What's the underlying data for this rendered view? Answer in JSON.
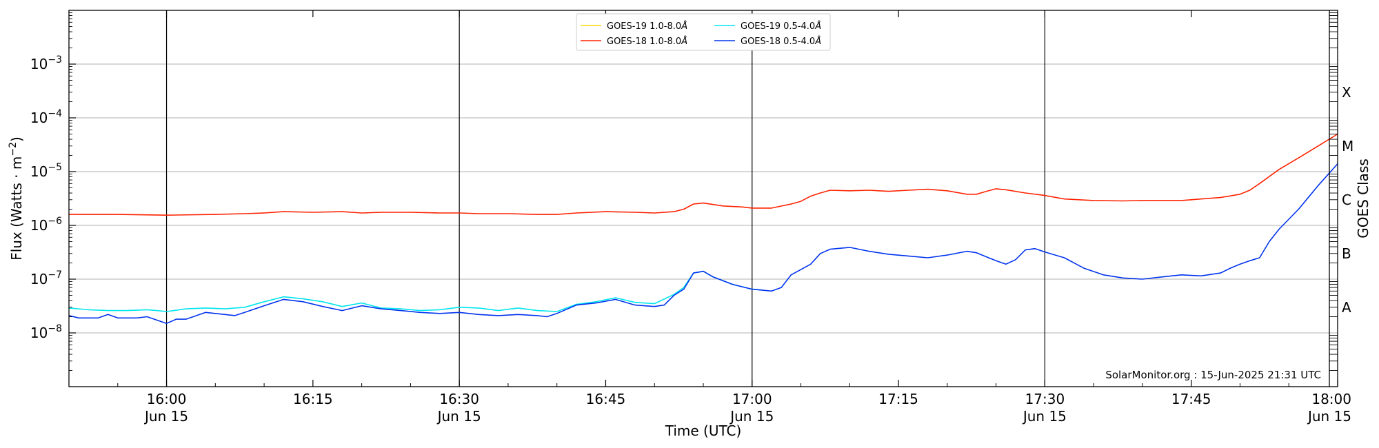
{
  "chart_data": {
    "type": "line",
    "title": "",
    "xlabel": "Time (UTC)",
    "ylabel": "Flux (Watts · m",
    "ylabel_sup": "−2",
    "ylabel_close": ")",
    "yscale": "log",
    "xlim": [
      -10,
      120
    ],
    "ylim": [
      1e-09,
      0.01
    ],
    "x_unit": "minutes after 16:00 UTC",
    "grid": "horizontal at decades",
    "legend_position": "top-center",
    "x_ticks": [
      {
        "x": 0,
        "label1": "16:00",
        "label2": "Jun 15"
      },
      {
        "x": 15,
        "label1": "16:15",
        "label2": ""
      },
      {
        "x": 30,
        "label1": "16:30",
        "label2": "Jun 15"
      },
      {
        "x": 45,
        "label1": "16:45",
        "label2": ""
      },
      {
        "x": 60,
        "label1": "17:00",
        "label2": "Jun 15"
      },
      {
        "x": 75,
        "label1": "17:15",
        "label2": ""
      },
      {
        "x": 90,
        "label1": "17:30",
        "label2": "Jun 15"
      },
      {
        "x": 105,
        "label1": "17:45",
        "label2": ""
      },
      {
        "x": 120,
        "label1": "18:00",
        "label2": "Jun 15"
      }
    ],
    "y_ticks": [
      {
        "value": 1e-08,
        "base": "10",
        "exp": "−8"
      },
      {
        "value": 1e-07,
        "base": "10",
        "exp": "−7"
      },
      {
        "value": 1e-06,
        "base": "10",
        "exp": "−6"
      },
      {
        "value": 1e-05,
        "base": "10",
        "exp": "−5"
      },
      {
        "value": 0.0001,
        "base": "10",
        "exp": "−4"
      },
      {
        "value": 0.001,
        "base": "10",
        "exp": "−3"
      }
    ],
    "vlines": [
      0,
      30,
      60,
      90
    ],
    "right_axis": {
      "label": "GOES Class",
      "classes": [
        {
          "label": "A",
          "value": 3e-08
        },
        {
          "label": "B",
          "value": 3e-07
        },
        {
          "label": "C",
          "value": 3e-06
        },
        {
          "label": "M",
          "value": 3e-05
        },
        {
          "label": "X",
          "value": 0.0003
        }
      ]
    },
    "annotation": "SolarMonitor.org : 15-Jun-2025 21:31 UTC",
    "series": [
      {
        "name": "GOES-19 1.0-8.0",
        "color": "#ffd700",
        "points": []
      },
      {
        "name": "GOES-19 0.5-4.0",
        "color": "#00e5ee",
        "points": [
          [
            -10,
            2.9e-08
          ],
          [
            -8,
            2.7e-08
          ],
          [
            -6,
            2.6e-08
          ],
          [
            -4,
            2.6e-08
          ],
          [
            -2,
            2.7e-08
          ],
          [
            -1,
            2.6e-08
          ],
          [
            0,
            2.5e-08
          ],
          [
            2,
            2.8e-08
          ],
          [
            4,
            2.9e-08
          ],
          [
            6,
            2.8e-08
          ],
          [
            8,
            3e-08
          ],
          [
            10,
            3.8e-08
          ],
          [
            12,
            4.7e-08
          ],
          [
            14,
            4.3e-08
          ],
          [
            16,
            3.8e-08
          ],
          [
            18,
            3.1e-08
          ],
          [
            20,
            3.6e-08
          ],
          [
            22,
            2.9e-08
          ],
          [
            24,
            2.8e-08
          ],
          [
            26,
            2.6e-08
          ],
          [
            28,
            2.7e-08
          ],
          [
            30,
            3e-08
          ],
          [
            32,
            2.9e-08
          ],
          [
            34,
            2.6e-08
          ],
          [
            36,
            2.9e-08
          ],
          [
            38,
            2.6e-08
          ],
          [
            40,
            2.5e-08
          ],
          [
            42,
            3.4e-08
          ],
          [
            44,
            3.8e-08
          ],
          [
            46,
            4.5e-08
          ],
          [
            48,
            3.7e-08
          ],
          [
            50,
            3.5e-08
          ],
          [
            52,
            5.2e-08
          ],
          [
            53,
            7e-08
          ],
          [
            54,
            1.3e-07
          ],
          [
            55,
            1.4e-07
          ],
          [
            56,
            1.1e-07
          ],
          [
            58,
            8e-08
          ],
          [
            60,
            6.5e-08
          ],
          [
            61,
            6.3e-08
          ]
        ]
      },
      {
        "name": "GOES-18 1.0-8.0",
        "color": "#ff2200",
        "points": [
          [
            -10,
            1.6e-06
          ],
          [
            -5,
            1.6e-06
          ],
          [
            0,
            1.55e-06
          ],
          [
            5,
            1.6e-06
          ],
          [
            8,
            1.65e-06
          ],
          [
            10,
            1.7e-06
          ],
          [
            12,
            1.8e-06
          ],
          [
            15,
            1.75e-06
          ],
          [
            18,
            1.8e-06
          ],
          [
            20,
            1.7e-06
          ],
          [
            22,
            1.75e-06
          ],
          [
            25,
            1.75e-06
          ],
          [
            28,
            1.7e-06
          ],
          [
            30,
            1.7e-06
          ],
          [
            32,
            1.65e-06
          ],
          [
            35,
            1.65e-06
          ],
          [
            38,
            1.6e-06
          ],
          [
            40,
            1.6e-06
          ],
          [
            42,
            1.7e-06
          ],
          [
            45,
            1.8e-06
          ],
          [
            48,
            1.75e-06
          ],
          [
            50,
            1.7e-06
          ],
          [
            52,
            1.8e-06
          ],
          [
            53,
            2e-06
          ],
          [
            54,
            2.5e-06
          ],
          [
            55,
            2.6e-06
          ],
          [
            57,
            2.3e-06
          ],
          [
            59,
            2.2e-06
          ],
          [
            60,
            2.1e-06
          ],
          [
            62,
            2.1e-06
          ],
          [
            64,
            2.5e-06
          ],
          [
            65,
            2.8e-06
          ],
          [
            66,
            3.5e-06
          ],
          [
            67,
            4e-06
          ],
          [
            68,
            4.5e-06
          ],
          [
            70,
            4.4e-06
          ],
          [
            72,
            4.5e-06
          ],
          [
            74,
            4.3e-06
          ],
          [
            76,
            4.5e-06
          ],
          [
            78,
            4.7e-06
          ],
          [
            80,
            4.4e-06
          ],
          [
            82,
            3.8e-06
          ],
          [
            83,
            3.8e-06
          ],
          [
            84,
            4.3e-06
          ],
          [
            85,
            4.8e-06
          ],
          [
            86,
            4.6e-06
          ],
          [
            88,
            4e-06
          ],
          [
            90,
            3.6e-06
          ],
          [
            92,
            3.1e-06
          ],
          [
            95,
            2.9e-06
          ],
          [
            98,
            2.85e-06
          ],
          [
            100,
            2.9e-06
          ],
          [
            102,
            2.9e-06
          ],
          [
            104,
            2.9e-06
          ],
          [
            106,
            3.1e-06
          ],
          [
            108,
            3.3e-06
          ],
          [
            110,
            3.8e-06
          ],
          [
            111,
            4.5e-06
          ],
          [
            112,
            6e-06
          ],
          [
            114,
            1.1e-05
          ],
          [
            116,
            1.8e-05
          ],
          [
            118,
            3e-05
          ],
          [
            120,
            5e-05
          ]
        ]
      },
      {
        "name": "GOES-18 0.5-4.0",
        "color": "#0033ee",
        "points": [
          [
            -10,
            2.1e-08
          ],
          [
            -9,
            1.9e-08
          ],
          [
            -7,
            1.9e-08
          ],
          [
            -6,
            2.2e-08
          ],
          [
            -5,
            1.9e-08
          ],
          [
            -3,
            1.9e-08
          ],
          [
            -2,
            2e-08
          ],
          [
            0,
            1.5e-08
          ],
          [
            1,
            1.8e-08
          ],
          [
            2,
            1.8e-08
          ],
          [
            4,
            2.4e-08
          ],
          [
            6,
            2.2e-08
          ],
          [
            7,
            2.1e-08
          ],
          [
            8,
            2.4e-08
          ],
          [
            10,
            3.2e-08
          ],
          [
            12,
            4.2e-08
          ],
          [
            14,
            3.8e-08
          ],
          [
            16,
            3.1e-08
          ],
          [
            18,
            2.6e-08
          ],
          [
            20,
            3.2e-08
          ],
          [
            22,
            2.8e-08
          ],
          [
            24,
            2.6e-08
          ],
          [
            26,
            2.4e-08
          ],
          [
            28,
            2.3e-08
          ],
          [
            30,
            2.4e-08
          ],
          [
            32,
            2.2e-08
          ],
          [
            34,
            2.1e-08
          ],
          [
            36,
            2.2e-08
          ],
          [
            38,
            2.1e-08
          ],
          [
            39,
            2e-08
          ],
          [
            40,
            2.3e-08
          ],
          [
            42,
            3.3e-08
          ],
          [
            44,
            3.6e-08
          ],
          [
            46,
            4.2e-08
          ],
          [
            48,
            3.3e-08
          ],
          [
            50,
            3.1e-08
          ],
          [
            51,
            3.3e-08
          ],
          [
            52,
            5e-08
          ],
          [
            53,
            6.5e-08
          ],
          [
            54,
            1.3e-07
          ],
          [
            55,
            1.4e-07
          ],
          [
            56,
            1.1e-07
          ],
          [
            58,
            8e-08
          ],
          [
            60,
            6.5e-08
          ],
          [
            62,
            6e-08
          ],
          [
            63,
            7e-08
          ],
          [
            64,
            1.2e-07
          ],
          [
            66,
            1.9e-07
          ],
          [
            67,
            3e-07
          ],
          [
            68,
            3.6e-07
          ],
          [
            70,
            3.9e-07
          ],
          [
            72,
            3.3e-07
          ],
          [
            74,
            2.9e-07
          ],
          [
            76,
            2.7e-07
          ],
          [
            78,
            2.5e-07
          ],
          [
            80,
            2.8e-07
          ],
          [
            82,
            3.3e-07
          ],
          [
            83,
            3.1e-07
          ],
          [
            84,
            2.6e-07
          ],
          [
            85,
            2.2e-07
          ],
          [
            86,
            1.9e-07
          ],
          [
            87,
            2.3e-07
          ],
          [
            88,
            3.5e-07
          ],
          [
            89,
            3.7e-07
          ],
          [
            90,
            3.2e-07
          ],
          [
            92,
            2.5e-07
          ],
          [
            94,
            1.6e-07
          ],
          [
            96,
            1.2e-07
          ],
          [
            98,
            1.05e-07
          ],
          [
            100,
            1e-07
          ],
          [
            102,
            1.1e-07
          ],
          [
            104,
            1.2e-07
          ],
          [
            106,
            1.15e-07
          ],
          [
            108,
            1.3e-07
          ],
          [
            109,
            1.6e-07
          ],
          [
            110,
            1.9e-07
          ],
          [
            111,
            2.2e-07
          ],
          [
            112,
            2.5e-07
          ],
          [
            113,
            5e-07
          ],
          [
            114,
            8.5e-07
          ],
          [
            116,
            2e-06
          ],
          [
            118,
            5.5e-06
          ],
          [
            120,
            1.4e-05
          ]
        ]
      }
    ]
  },
  "legend": {
    "entries": [
      {
        "label": "GOES-19 1.0-8.0",
        "unit": "Å",
        "color": "#ffd700"
      },
      {
        "label": "GOES-19 0.5-4.0",
        "unit": "Å",
        "color": "#00e5ee"
      },
      {
        "label": "GOES-18 1.0-8.0",
        "unit": "Å",
        "color": "#ff2200"
      },
      {
        "label": "GOES-18 0.5-4.0",
        "unit": "Å",
        "color": "#0033ee"
      }
    ]
  }
}
